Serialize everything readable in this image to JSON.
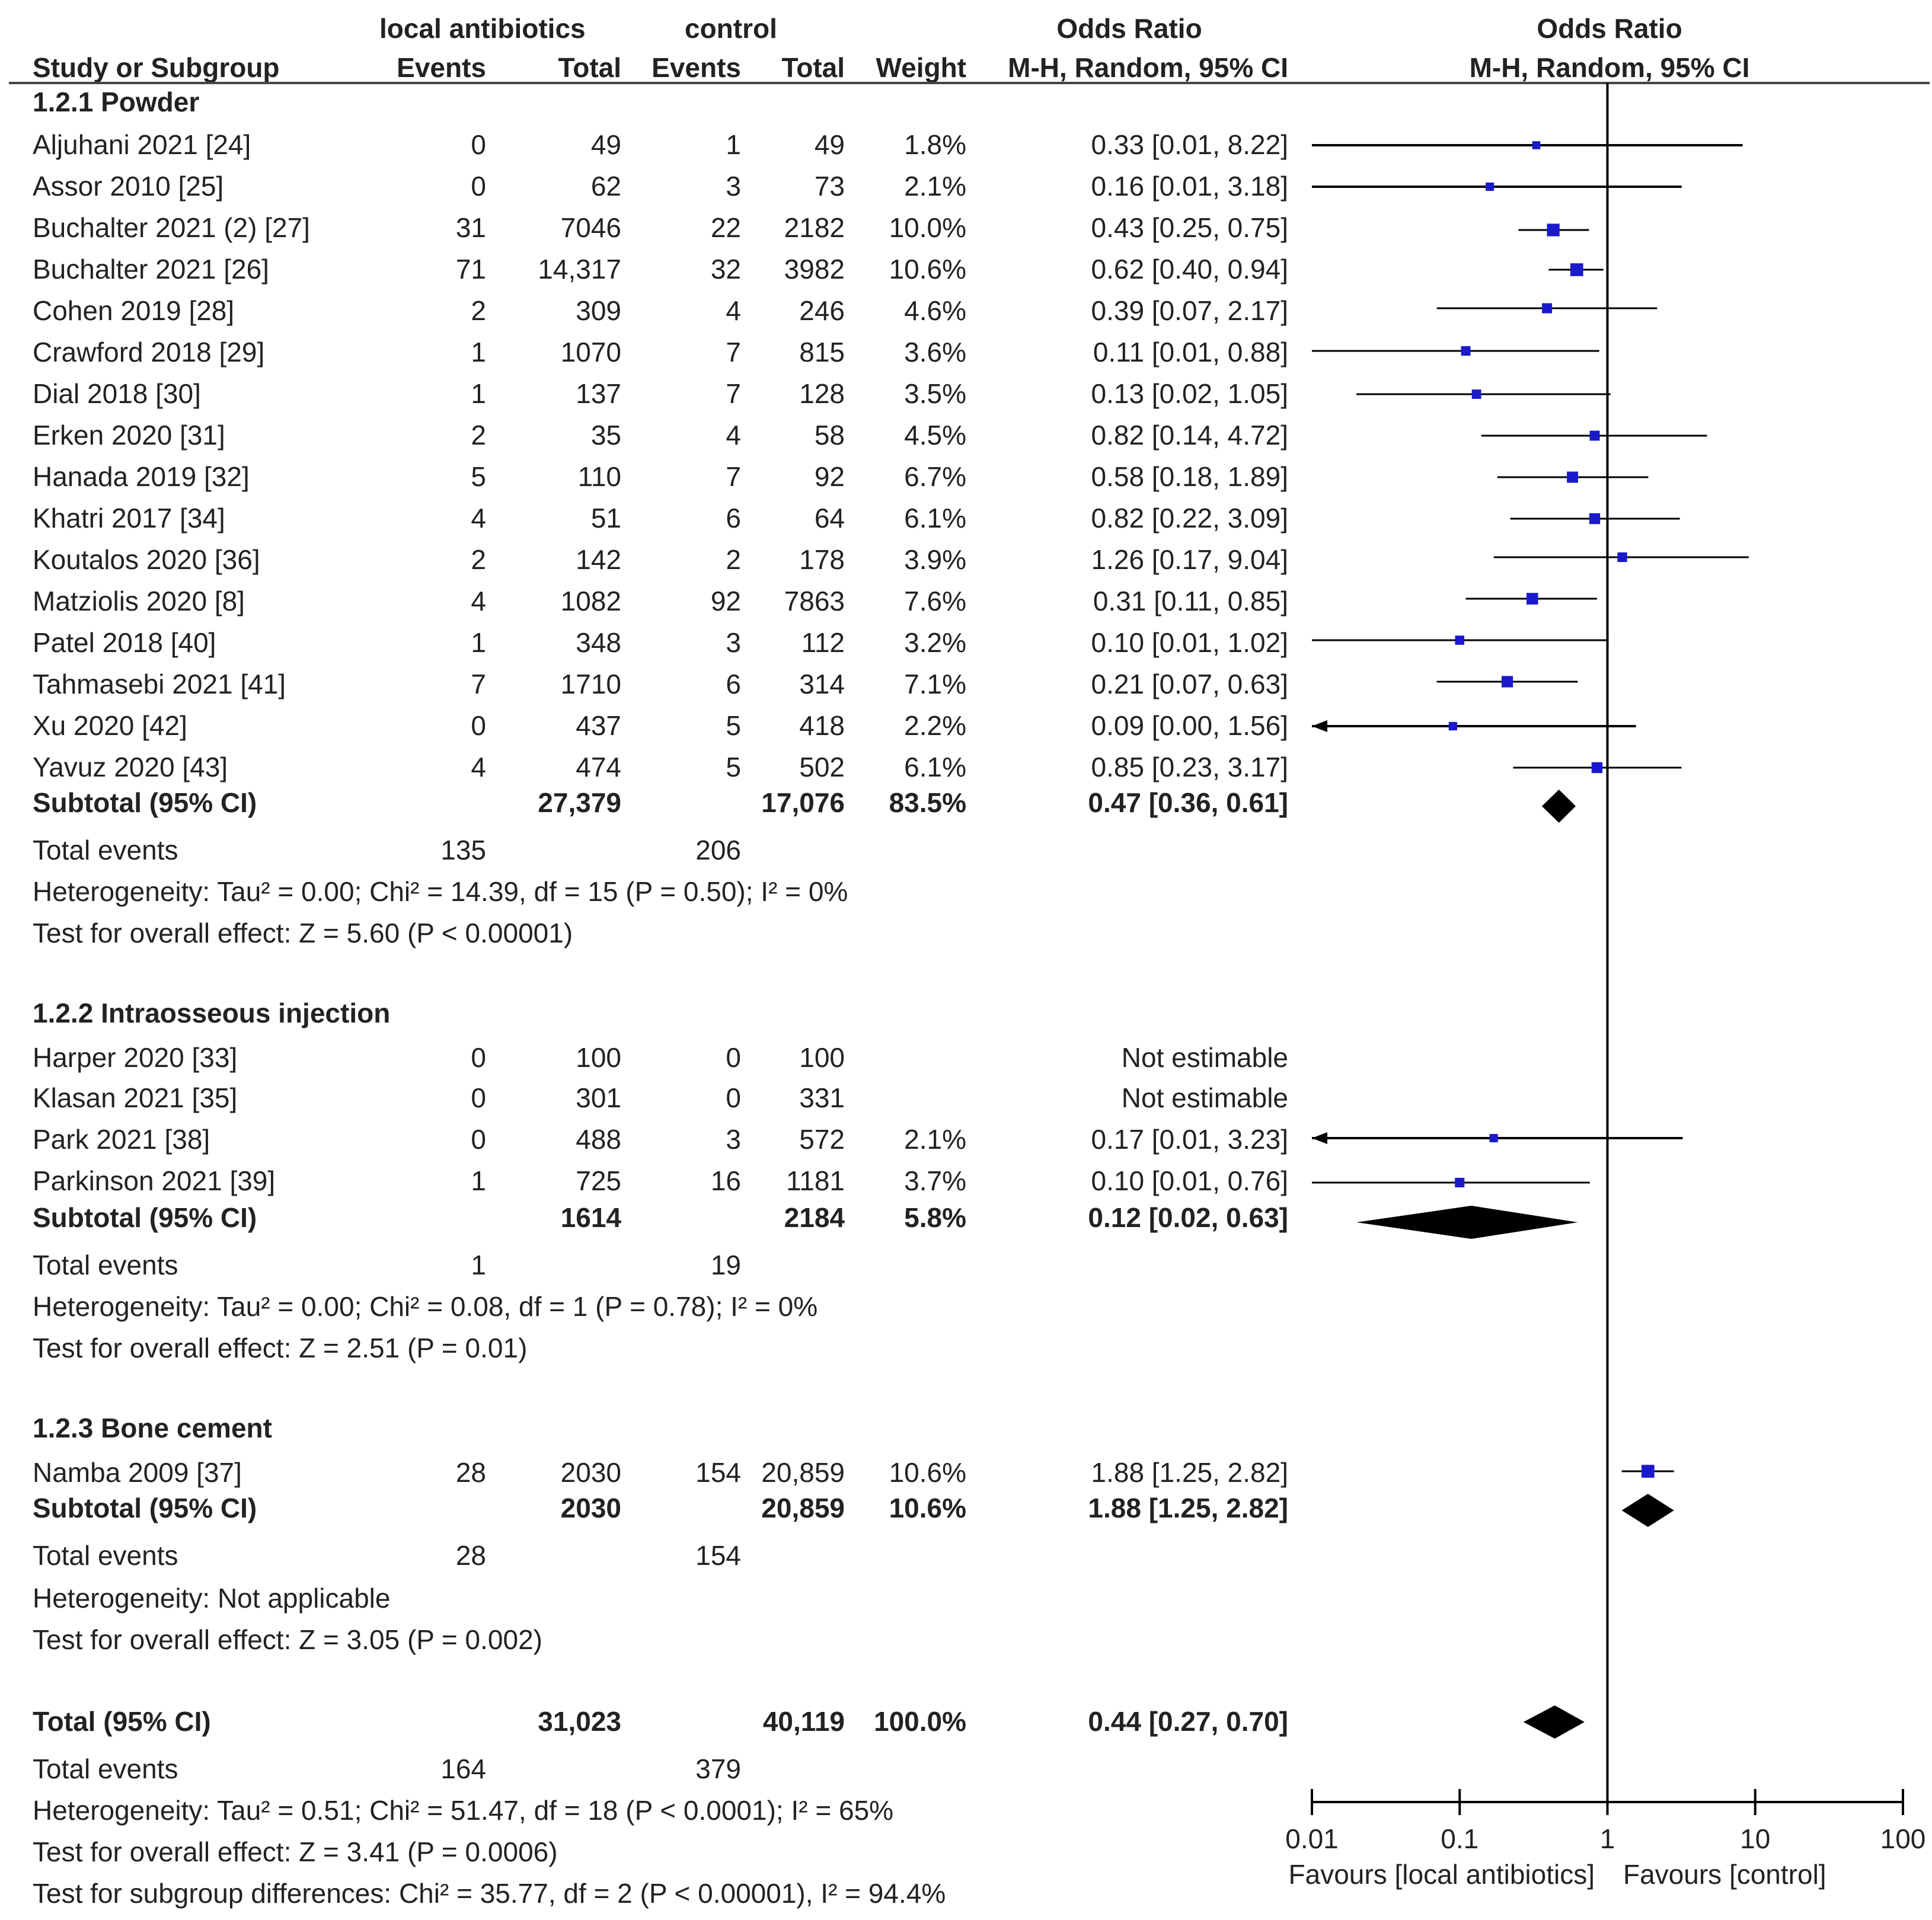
{
  "header": {
    "col_study": "Study or Subgroup",
    "group_local": "local antibiotics",
    "group_control": "control",
    "col_events": "Events",
    "col_total": "Total",
    "col_weight": "Weight",
    "or_title": "Odds Ratio",
    "or_method": "M-H, Random, 95% CI",
    "plot_title": "Odds Ratio",
    "plot_method": "M-H, Random, 95% CI"
  },
  "subgroups": [
    {
      "title": "1.2.1 Powder",
      "studies": [
        {
          "name": "Aljuhani 2021 [24]",
          "e1": "0",
          "t1": "49",
          "e2": "1",
          "t2": "49",
          "weight": "1.8%",
          "ci_text": "0.33 [0.01, 8.22]",
          "or": 0.33,
          "lo": 0.01,
          "hi": 8.22
        },
        {
          "name": "Assor 2010 [25]",
          "e1": "0",
          "t1": "62",
          "e2": "3",
          "t2": "73",
          "weight": "2.1%",
          "ci_text": "0.16 [0.01, 3.18]",
          "or": 0.16,
          "lo": 0.01,
          "hi": 3.18
        },
        {
          "name": "Buchalter 2021 (2) [27]",
          "e1": "31",
          "t1": "7046",
          "e2": "22",
          "t2": "2182",
          "weight": "10.0%",
          "ci_text": "0.43 [0.25, 0.75]",
          "or": 0.43,
          "lo": 0.25,
          "hi": 0.75
        },
        {
          "name": "Buchalter 2021 [26]",
          "e1": "71",
          "t1": "14,317",
          "e2": "32",
          "t2": "3982",
          "weight": "10.6%",
          "ci_text": "0.62 [0.40, 0.94]",
          "or": 0.62,
          "lo": 0.4,
          "hi": 0.94
        },
        {
          "name": "Cohen 2019 [28]",
          "e1": "2",
          "t1": "309",
          "e2": "4",
          "t2": "246",
          "weight": "4.6%",
          "ci_text": "0.39 [0.07, 2.17]",
          "or": 0.39,
          "lo": 0.07,
          "hi": 2.17
        },
        {
          "name": "Crawford 2018 [29]",
          "e1": "1",
          "t1": "1070",
          "e2": "7",
          "t2": "815",
          "weight": "3.6%",
          "ci_text": "0.11 [0.01, 0.88]",
          "or": 0.11,
          "lo": 0.01,
          "hi": 0.88
        },
        {
          "name": "Dial 2018 [30]",
          "e1": "1",
          "t1": "137",
          "e2": "7",
          "t2": "128",
          "weight": "3.5%",
          "ci_text": "0.13 [0.02, 1.05]",
          "or": 0.13,
          "lo": 0.02,
          "hi": 1.05
        },
        {
          "name": "Erken 2020 [31]",
          "e1": "2",
          "t1": "35",
          "e2": "4",
          "t2": "58",
          "weight": "4.5%",
          "ci_text": "0.82 [0.14, 4.72]",
          "or": 0.82,
          "lo": 0.14,
          "hi": 4.72
        },
        {
          "name": "Hanada 2019 [32]",
          "e1": "5",
          "t1": "110",
          "e2": "7",
          "t2": "92",
          "weight": "6.7%",
          "ci_text": "0.58 [0.18, 1.89]",
          "or": 0.58,
          "lo": 0.18,
          "hi": 1.89
        },
        {
          "name": "Khatri 2017 [34]",
          "e1": "4",
          "t1": "51",
          "e2": "6",
          "t2": "64",
          "weight": "6.1%",
          "ci_text": "0.82 [0.22, 3.09]",
          "or": 0.82,
          "lo": 0.22,
          "hi": 3.09
        },
        {
          "name": "Koutalos 2020 [36]",
          "e1": "2",
          "t1": "142",
          "e2": "2",
          "t2": "178",
          "weight": "3.9%",
          "ci_text": "1.26 [0.17, 9.04]",
          "or": 1.26,
          "lo": 0.17,
          "hi": 9.04
        },
        {
          "name": "Matziolis 2020 [8]",
          "e1": "4",
          "t1": "1082",
          "e2": "92",
          "t2": "7863",
          "weight": "7.6%",
          "ci_text": "0.31 [0.11, 0.85]",
          "or": 0.31,
          "lo": 0.11,
          "hi": 0.85
        },
        {
          "name": "Patel 2018 [40]",
          "e1": "1",
          "t1": "348",
          "e2": "3",
          "t2": "112",
          "weight": "3.2%",
          "ci_text": "0.10 [0.01, 1.02]",
          "or": 0.1,
          "lo": 0.01,
          "hi": 1.02
        },
        {
          "name": "Tahmasebi 2021 [41]",
          "e1": "7",
          "t1": "1710",
          "e2": "6",
          "t2": "314",
          "weight": "7.1%",
          "ci_text": "0.21 [0.07, 0.63]",
          "or": 0.21,
          "lo": 0.07,
          "hi": 0.63
        },
        {
          "name": "Xu 2020 [42]",
          "e1": "0",
          "t1": "437",
          "e2": "5",
          "t2": "418",
          "weight": "2.2%",
          "ci_text": "0.09 [0.00, 1.56]",
          "or": 0.09,
          "lo": 0.003,
          "hi": 1.56
        },
        {
          "name": "Yavuz 2020 [43]",
          "e1": "4",
          "t1": "474",
          "e2": "5",
          "t2": "502",
          "weight": "6.1%",
          "ci_text": "0.85 [0.23, 3.17]",
          "or": 0.85,
          "lo": 0.23,
          "hi": 3.17
        }
      ],
      "subtotal": {
        "label": "Subtotal (95% CI)",
        "t1": "27,379",
        "t2": "17,076",
        "weight": "83.5%",
        "ci_text": "0.47 [0.36, 0.61]",
        "or": 0.47,
        "lo": 0.36,
        "hi": 0.61
      },
      "total_events": {
        "label": "Total events",
        "e1": "135",
        "e2": "206"
      },
      "heterogeneity": "Heterogeneity: Tau² = 0.00; Chi² = 14.39, df = 15 (P = 0.50); I² = 0%",
      "overall": "Test for overall effect: Z = 5.60 (P < 0.00001)"
    },
    {
      "title": "1.2.2 Intraosseous injection",
      "studies": [
        {
          "name": "Harper 2020 [33]",
          "e1": "0",
          "t1": "100",
          "e2": "0",
          "t2": "100",
          "weight": "",
          "ci_text": "Not estimable",
          "or": null,
          "lo": null,
          "hi": null
        },
        {
          "name": "Klasan 2021 [35]",
          "e1": "0",
          "t1": "301",
          "e2": "0",
          "t2": "331",
          "weight": "",
          "ci_text": "Not estimable",
          "or": null,
          "lo": null,
          "hi": null
        },
        {
          "name": "Park 2021 [38]",
          "e1": "0",
          "t1": "488",
          "e2": "3",
          "t2": "572",
          "weight": "2.1%",
          "ci_text": "0.17 [0.01, 3.23]",
          "or": 0.17,
          "lo": 0.005,
          "hi": 3.23
        },
        {
          "name": "Parkinson 2021 [39]",
          "e1": "1",
          "t1": "725",
          "e2": "16",
          "t2": "1181",
          "weight": "3.7%",
          "ci_text": "0.10 [0.01, 0.76]",
          "or": 0.1,
          "lo": 0.01,
          "hi": 0.76
        }
      ],
      "subtotal": {
        "label": "Subtotal (95% CI)",
        "t1": "1614",
        "t2": "2184",
        "weight": "5.8%",
        "ci_text": "0.12 [0.02, 0.63]",
        "or": 0.12,
        "lo": 0.02,
        "hi": 0.63
      },
      "total_events": {
        "label": "Total events",
        "e1": "1",
        "e2": "19"
      },
      "heterogeneity": "Heterogeneity: Tau² = 0.00; Chi² = 0.08, df = 1 (P = 0.78); I² = 0%",
      "overall": "Test for overall effect: Z = 2.51 (P = 0.01)"
    },
    {
      "title": "1.2.3 Bone cement",
      "studies": [
        {
          "name": "Namba 2009 [37]",
          "e1": "28",
          "t1": "2030",
          "e2": "154",
          "t2": "20,859",
          "weight": "10.6%",
          "ci_text": "1.88 [1.25, 2.82]",
          "or": 1.88,
          "lo": 1.25,
          "hi": 2.82
        }
      ],
      "subtotal": {
        "label": "Subtotal (95% CI)",
        "t1": "2030",
        "t2": "20,859",
        "weight": "10.6%",
        "ci_text": "1.88 [1.25, 2.82]",
        "or": 1.88,
        "lo": 1.25,
        "hi": 2.82
      },
      "total_events": {
        "label": "Total events",
        "e1": "28",
        "e2": "154"
      },
      "heterogeneity": "Heterogeneity: Not applicable",
      "overall": "Test for overall effect: Z = 3.05 (P = 0.002)"
    }
  ],
  "total": {
    "label": "Total (95% CI)",
    "t1": "31,023",
    "t2": "40,119",
    "weight": "100.0%",
    "ci_text": "0.44 [0.27, 0.70]",
    "or": 0.44,
    "lo": 0.27,
    "hi": 0.7
  },
  "total_events": {
    "label": "Total events",
    "e1": "164",
    "e2": "379"
  },
  "total_heterogeneity": "Heterogeneity: Tau² = 0.51; Chi² = 51.47, df = 18 (P < 0.0001); I² = 65%",
  "total_overall": "Test for overall effect: Z = 3.41 (P = 0.0006)",
  "subgroup_differences": "Test for subgroup differences: Chi² = 35.77, df = 2 (P < 0.00001), I² = 94.4%",
  "axis": {
    "ticks": [
      0.01,
      0.1,
      1,
      10,
      100
    ],
    "tick_labels": [
      "0.01",
      "0.1",
      "1",
      "10",
      "100"
    ],
    "left_label": "Favours [local antibiotics]",
    "right_label": "Favours [control]"
  },
  "colors": {
    "square": "#1a1acc",
    "line": "#000000",
    "text": "#222222"
  },
  "chart_data": {
    "type": "forest",
    "title": "Odds Ratio M-H, Random, 95% CI",
    "xscale": "log",
    "xlim": [
      0.01,
      100
    ],
    "xticks": [
      0.01,
      0.1,
      1,
      10,
      100
    ],
    "xlabel_left": "Favours [local antibiotics]",
    "xlabel_right": "Favours [control]"
  }
}
